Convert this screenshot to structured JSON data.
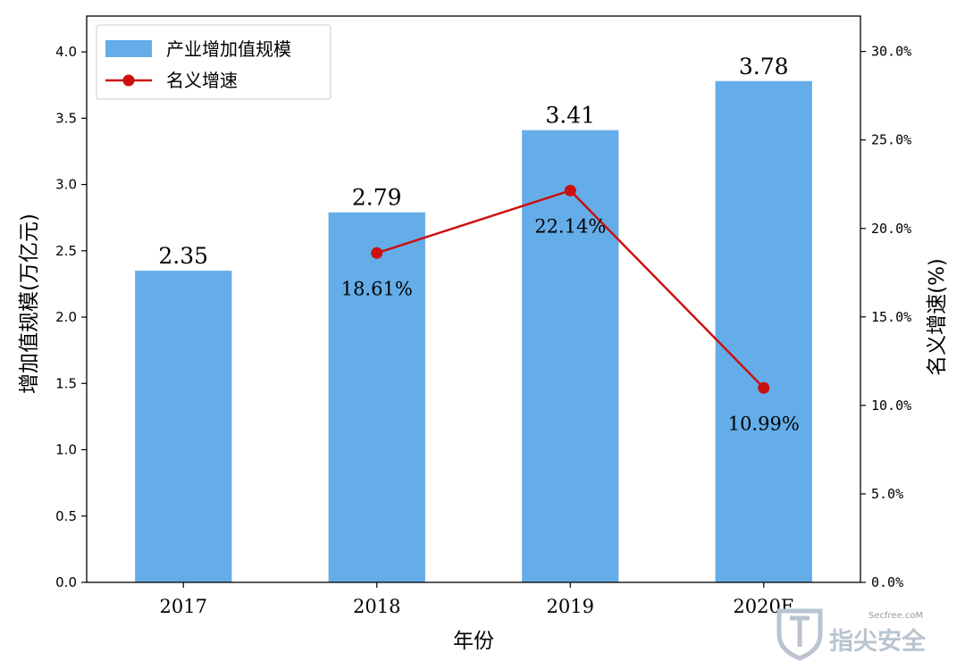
{
  "chart_data": {
    "type": "bar",
    "categories": [
      "2017",
      "2018",
      "2019",
      "2020E"
    ],
    "series": [
      {
        "name": "产业增加值规模",
        "type": "bar",
        "axis": "left",
        "values": [
          2.35,
          2.79,
          3.41,
          3.78
        ],
        "data_labels": [
          "2.35",
          "2.79",
          "3.41",
          "3.78"
        ],
        "color": "#64ade8"
      },
      {
        "name": "名义增速",
        "type": "line",
        "axis": "right",
        "values": [
          null,
          18.61,
          22.14,
          10.99
        ],
        "data_labels": [
          "",
          "18.61%",
          "22.14%",
          "10.99%"
        ],
        "color": "#cc1010"
      }
    ],
    "xlabel": "年份",
    "ylabel": "增加值规模(万亿元)",
    "ylabel_right": "名义增速(%)",
    "ylim": [
      0,
      4.27
    ],
    "ylim_right": [
      0,
      32.0
    ],
    "yticks": [
      "0.0",
      "0.5",
      "1.0",
      "1.5",
      "2.0",
      "2.5",
      "3.0",
      "3.5",
      "4.0"
    ],
    "yticks_right": [
      "0.0%",
      "5.0%",
      "10.0%",
      "15.0%",
      "20.0%",
      "25.0%",
      "30.0%"
    ],
    "legend": "top-left",
    "grid": false
  },
  "watermark": {
    "site": "Secfree.coM",
    "brand": "指尖安全"
  }
}
